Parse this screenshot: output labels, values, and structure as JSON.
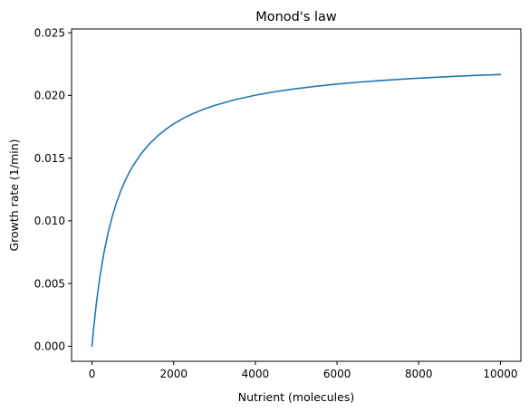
{
  "chart_data": {
    "type": "line",
    "title": "Monod's law",
    "xlabel": "Nutrient (molecules)",
    "ylabel": "Growth rate (1/min)",
    "xlim": [
      -500,
      10500
    ],
    "ylim": [
      -0.0012,
      0.0253
    ],
    "xticks": [
      0,
      2000,
      4000,
      6000,
      8000,
      10000
    ],
    "xtick_labels": [
      "0",
      "2000",
      "4000",
      "6000",
      "8000",
      "10000"
    ],
    "yticks": [
      0.0,
      0.005,
      0.01,
      0.015,
      0.02,
      0.025
    ],
    "ytick_labels": [
      "0.000",
      "0.005",
      "0.010",
      "0.015",
      "0.020",
      "0.025"
    ],
    "grid": false,
    "colors": {
      "series": "#1f77b4"
    },
    "series": [
      {
        "x": [
          0,
          25,
          50,
          100,
          150,
          200,
          300,
          400,
          500,
          600,
          700,
          800,
          900,
          1000,
          1200,
          1400,
          1600,
          1800,
          2000,
          2250,
          2500,
          2750,
          3000,
          3500,
          4000,
          4500,
          5000,
          5500,
          6000,
          6500,
          7000,
          7500,
          8000,
          8500,
          9000,
          9500,
          10000
        ],
        "y": [
          0,
          0.00089,
          0.00172,
          0.00321,
          0.00451,
          0.00566,
          0.00758,
          0.00912,
          0.01039,
          0.01145,
          0.01235,
          0.01311,
          0.01378,
          0.01437,
          0.01534,
          0.01612,
          0.01675,
          0.01728,
          0.01773,
          0.0182,
          0.01859,
          0.01892,
          0.0192,
          0.01966,
          0.02002,
          0.02031,
          0.02054,
          0.02074,
          0.02091,
          0.02105,
          0.02117,
          0.02128,
          0.02138,
          0.02146,
          0.02154,
          0.02161,
          0.02167
        ]
      }
    ]
  }
}
